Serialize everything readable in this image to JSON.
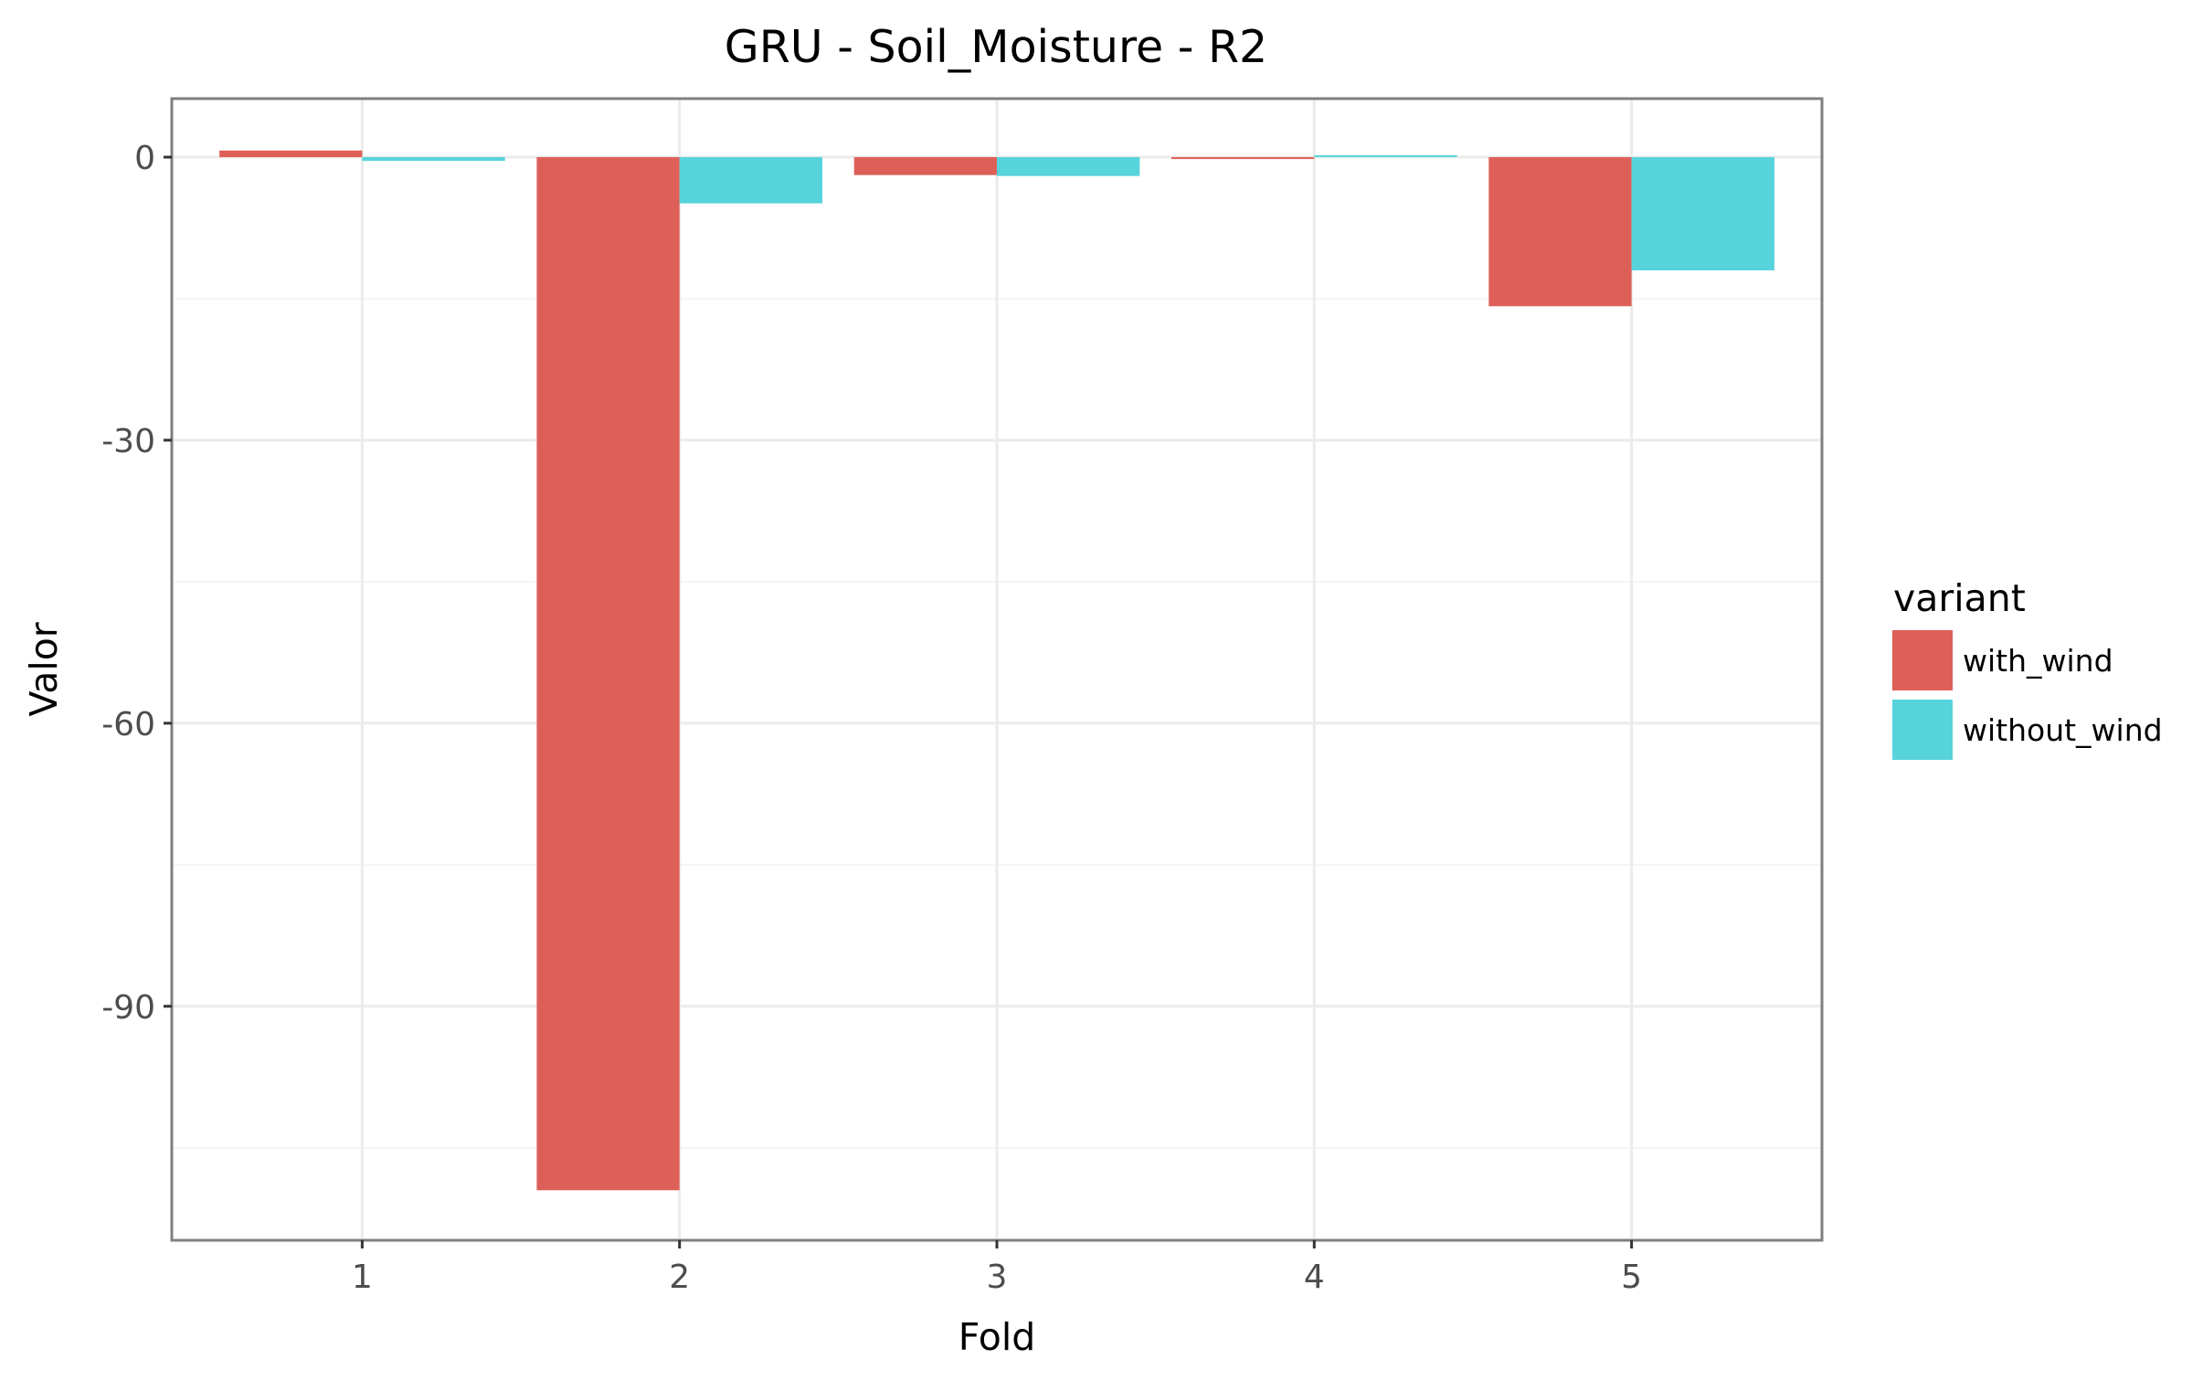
{
  "chart_data": {
    "type": "bar",
    "title": "GRU - Soil_Moisture - R2",
    "xlabel": "Fold",
    "ylabel": "Valor",
    "categories": [
      "1",
      "2",
      "3",
      "4",
      "5"
    ],
    "series": [
      {
        "name": "with_wind",
        "color": "#dd6058",
        "values": [
          0.7,
          -109.5,
          -1.9,
          -0.2,
          -15.8
        ]
      },
      {
        "name": "without_wind",
        "color": "#57d3db",
        "values": [
          -0.4,
          -4.9,
          -2.0,
          0.2,
          -12.0
        ]
      }
    ],
    "ylim": [
      -114.8,
      6.2
    ],
    "yticks": [
      0,
      -30,
      -60,
      -90
    ],
    "ytick_labels": [
      "0",
      "-30",
      "-60",
      "-90"
    ],
    "grid": true,
    "legend": {
      "title": "variant",
      "placement": "right"
    },
    "colors": {
      "panel_border": "#7f7f7f",
      "grid_major": "#ebebeb",
      "grid_minor": "#f5f5f5",
      "tick_label": "#4d4d4d"
    }
  }
}
